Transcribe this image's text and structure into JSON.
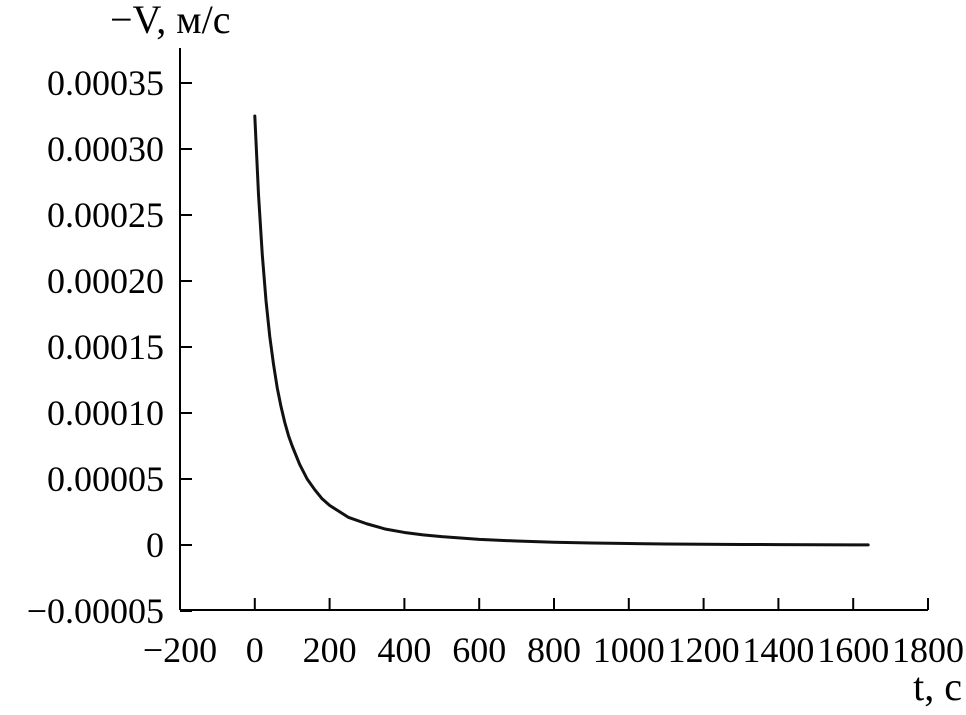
{
  "chart_data": {
    "type": "line",
    "title": "",
    "ylabel": "−V, м/с",
    "xlabel": "t, с",
    "xlim": [
      -200,
      1800
    ],
    "ylim": [
      -5e-05,
      0.00037
    ],
    "x_ticks": [
      -200,
      0,
      200,
      400,
      600,
      800,
      1000,
      1200,
      1400,
      1600,
      1800
    ],
    "x_tick_labels": [
      "−200",
      "0",
      "200",
      "400",
      "600",
      "800",
      "1000",
      "1200",
      "1400",
      "1600",
      "1800"
    ],
    "y_ticks": [
      -5e-05,
      0,
      5e-05,
      0.0001,
      0.00015,
      0.0002,
      0.00025,
      0.0003,
      0.00035
    ],
    "y_tick_labels": [
      "−0.00005",
      "0",
      "0.00005",
      "0.00010",
      "0.00015",
      "0.00020",
      "0.00025",
      "0.00030",
      "0.00035"
    ],
    "grid": false,
    "series": [
      {
        "x": [
          0,
          10,
          20,
          30,
          40,
          50,
          60,
          70,
          80,
          90,
          100,
          120,
          140,
          160,
          180,
          200,
          250,
          300,
          350,
          400,
          450,
          500,
          600,
          700,
          800,
          900,
          1000,
          1100,
          1200,
          1300,
          1400,
          1500,
          1600,
          1640
        ],
        "y": [
          0.000325,
          0.000265,
          0.00022,
          0.000185,
          0.000158,
          0.000137,
          0.000119,
          0.000105,
          9.3e-05,
          8.3e-05,
          7.5e-05,
          6.1e-05,
          5e-05,
          4.2e-05,
          3.5e-05,
          3e-05,
          2.1e-05,
          1.6e-05,
          1.2e-05,
          9.5e-06,
          7.7e-06,
          6.3e-06,
          4.3e-06,
          3e-06,
          2.1e-06,
          1.5e-06,
          1.1e-06,
          8e-07,
          6e-07,
          4e-07,
          3e-07,
          2e-07,
          1e-07,
          1e-07
        ]
      }
    ]
  }
}
